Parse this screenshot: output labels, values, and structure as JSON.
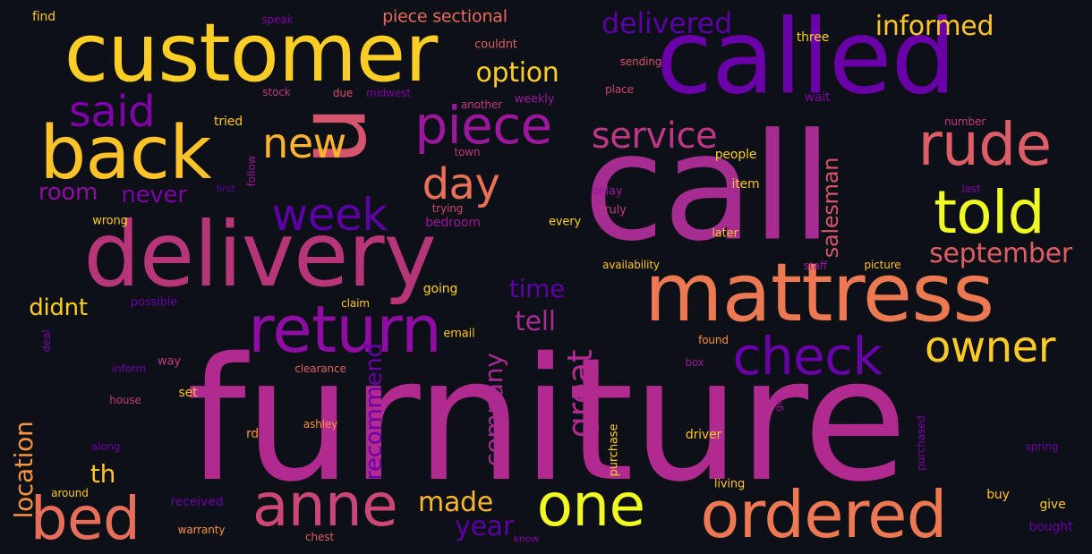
{
  "words": [
    {
      "text": "furniture",
      "color": "#b12a90"
    },
    {
      "text": "call",
      "color": "#a62c92"
    },
    {
      "text": "called",
      "color": "#6a00a8"
    },
    {
      "text": "customer",
      "color": "#fcce25"
    },
    {
      "text": "delivery",
      "color": "#b63679"
    },
    {
      "text": "mattress",
      "color": "#ed7953"
    },
    {
      "text": "back",
      "color": "#fdc328"
    },
    {
      "text": "u",
      "color": "#d5546e"
    },
    {
      "text": "return",
      "color": "#8f0da4"
    },
    {
      "text": "ordered",
      "color": "#ed7953"
    },
    {
      "text": "anne",
      "color": "#cc4778"
    },
    {
      "text": "bed",
      "color": "#e76f5a"
    },
    {
      "text": "told",
      "color": "#f0f921"
    },
    {
      "text": "piece",
      "color": "#9c179e"
    },
    {
      "text": "rude",
      "color": "#dd5e66"
    },
    {
      "text": "one",
      "color": "#f0f921"
    },
    {
      "text": "check",
      "color": "#6a00a8"
    },
    {
      "text": "owner",
      "color": "#fdca26"
    },
    {
      "text": "week",
      "color": "#5c01a6"
    },
    {
      "text": "new",
      "color": "#fdb32f"
    },
    {
      "text": "said",
      "color": "#7e03a8"
    },
    {
      "text": "day",
      "color": "#e97158"
    },
    {
      "text": "service",
      "color": "#bd3786"
    },
    {
      "text": "delivered",
      "color": "#5c01a6"
    },
    {
      "text": "informed",
      "color": "#fdc527"
    },
    {
      "text": "option",
      "color": "#fcce25"
    },
    {
      "text": "great",
      "color": "#b12a90"
    },
    {
      "text": "salesman",
      "color": "#d5546e"
    },
    {
      "text": "september",
      "color": "#dd5e66"
    },
    {
      "text": "made",
      "color": "#fdb42f"
    },
    {
      "text": "year",
      "color": "#5c01a6"
    },
    {
      "text": "tell",
      "color": "#a62c92"
    },
    {
      "text": "time",
      "color": "#5c01a6"
    },
    {
      "text": "room",
      "color": "#8f0da4"
    },
    {
      "text": "never",
      "color": "#7e03a8"
    },
    {
      "text": "didnt",
      "color": "#fcce25"
    },
    {
      "text": "th",
      "color": "#fdc527"
    },
    {
      "text": "company",
      "color": "#a62c92"
    },
    {
      "text": "recommend",
      "color": "#6a00a8"
    },
    {
      "text": "location",
      "color": "#f89441"
    },
    {
      "text": "piece sectional",
      "color": "#e66c5c"
    },
    {
      "text": "find",
      "color": "#fdc328"
    },
    {
      "text": "speak",
      "color": "#7e03a8"
    },
    {
      "text": "couldnt",
      "color": "#dd5e66"
    },
    {
      "text": "three",
      "color": "#fcce25"
    },
    {
      "text": "sending",
      "color": "#d5546e"
    },
    {
      "text": "stock",
      "color": "#c03a83"
    },
    {
      "text": "due",
      "color": "#d5546e"
    },
    {
      "text": "midwest",
      "color": "#7e03a8"
    },
    {
      "text": "another",
      "color": "#c03a83"
    },
    {
      "text": "weekly",
      "color": "#9c179e"
    },
    {
      "text": "place",
      "color": "#cc4778"
    },
    {
      "text": "wait",
      "color": "#7e03a8"
    },
    {
      "text": "number",
      "color": "#c03a83"
    },
    {
      "text": "tried",
      "color": "#fdc527"
    },
    {
      "text": "town",
      "color": "#c03a83"
    },
    {
      "text": "people",
      "color": "#fcce25"
    },
    {
      "text": "item",
      "color": "#fdc527"
    },
    {
      "text": "follow",
      "color": "#9c179e"
    },
    {
      "text": "first",
      "color": "#5c01a6"
    },
    {
      "text": "trying",
      "color": "#cc4778"
    },
    {
      "text": "delay",
      "color": "#9c179e"
    },
    {
      "text": "last",
      "color": "#7e03a8"
    },
    {
      "text": "wrong",
      "color": "#fcce25"
    },
    {
      "text": "bedroom",
      "color": "#9c179e"
    },
    {
      "text": "every",
      "color": "#fcce25"
    },
    {
      "text": "truly",
      "color": "#c03a83"
    },
    {
      "text": "later",
      "color": "#fdc527"
    },
    {
      "text": "availability",
      "color": "#fdc527"
    },
    {
      "text": "staff",
      "color": "#9c179e"
    },
    {
      "text": "picture",
      "color": "#fdc527"
    },
    {
      "text": "possible",
      "color": "#6a00a8"
    },
    {
      "text": "claim",
      "color": "#fdc527"
    },
    {
      "text": "going",
      "color": "#fcce25"
    },
    {
      "text": "deal",
      "color": "#7e03a8"
    },
    {
      "text": "email",
      "color": "#fdc527"
    },
    {
      "text": "found",
      "color": "#f89441"
    },
    {
      "text": "inform",
      "color": "#6a00a8"
    },
    {
      "text": "way",
      "color": "#c03a83"
    },
    {
      "text": "clearance",
      "color": "#dd5e66"
    },
    {
      "text": "box",
      "color": "#9c179e"
    },
    {
      "text": "house",
      "color": "#c03a83"
    },
    {
      "text": "set",
      "color": "#fdc527"
    },
    {
      "text": "got",
      "color": "#9c179e"
    },
    {
      "text": "ashley",
      "color": "#f89441"
    },
    {
      "text": "rd",
      "color": "#f89441"
    },
    {
      "text": "driver",
      "color": "#fdc527"
    },
    {
      "text": "purchase",
      "color": "#fcce25"
    },
    {
      "text": "purchased",
      "color": "#7e03a8"
    },
    {
      "text": "along",
      "color": "#6a00a8"
    },
    {
      "text": "spring",
      "color": "#6a00a8"
    },
    {
      "text": "around",
      "color": "#fdc527"
    },
    {
      "text": "received",
      "color": "#6a00a8"
    },
    {
      "text": "living",
      "color": "#fdc527"
    },
    {
      "text": "buy",
      "color": "#fdc527"
    },
    {
      "text": "give",
      "color": "#fdc527"
    },
    {
      "text": "warranty",
      "color": "#f89441"
    },
    {
      "text": "chest",
      "color": "#dd5e66"
    },
    {
      "text": "know",
      "color": "#7e03a8"
    },
    {
      "text": "bought",
      "color": "#6a00a8"
    }
  ]
}
